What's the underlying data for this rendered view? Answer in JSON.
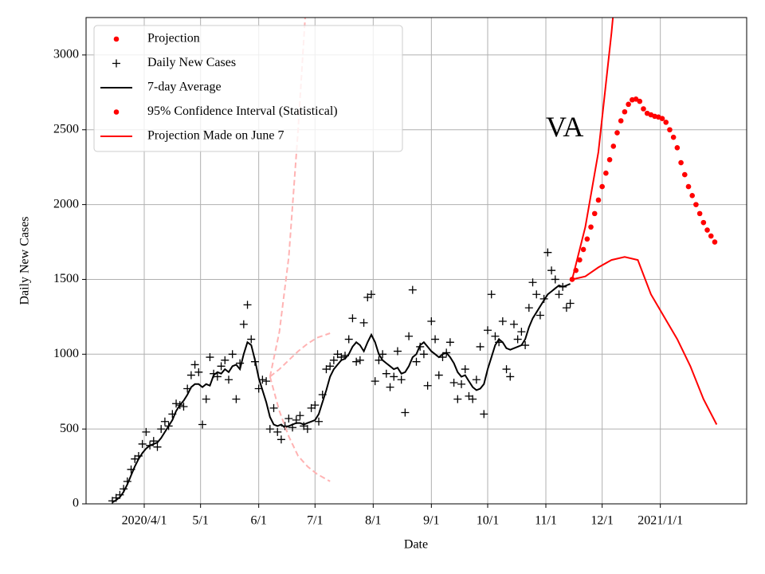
{
  "chart_data": {
    "type": "line",
    "annotation": {
      "text": "VA",
      "x": "2020-11-01",
      "y": 2500
    },
    "x_label": "Date",
    "y_label": "Daily New Cases",
    "xlim": [
      "2020-03-01",
      "2021-02-16"
    ],
    "ylim": [
      0,
      3250
    ],
    "yticks": [
      0,
      500,
      1000,
      1500,
      2000,
      2500,
      3000
    ],
    "xticks": [
      {
        "value": "2020-04-01",
        "label": "2020/4/1"
      },
      {
        "value": "2020-05-01",
        "label": "5/1"
      },
      {
        "value": "2020-06-01",
        "label": "6/1"
      },
      {
        "value": "2020-07-01",
        "label": "7/1"
      },
      {
        "value": "2020-08-01",
        "label": "8/1"
      },
      {
        "value": "2020-09-01",
        "label": "9/1"
      },
      {
        "value": "2020-10-01",
        "label": "10/1"
      },
      {
        "value": "2020-11-01",
        "label": "11/1"
      },
      {
        "value": "2020-12-01",
        "label": "12/1"
      },
      {
        "value": "2021-01-01",
        "label": "2021/1/1"
      }
    ],
    "grid": true,
    "legend": "upper left",
    "x": [
      "2020-03-15",
      "2020-03-17",
      "2020-03-19",
      "2020-03-21",
      "2020-03-23",
      "2020-03-25",
      "2020-03-27",
      "2020-03-29",
      "2020-03-31",
      "2020-04-02",
      "2020-04-04",
      "2020-04-06",
      "2020-04-08",
      "2020-04-10",
      "2020-04-12",
      "2020-04-14",
      "2020-04-16",
      "2020-04-18",
      "2020-04-20",
      "2020-04-22",
      "2020-04-24",
      "2020-04-26",
      "2020-04-28",
      "2020-04-30",
      "2020-05-02",
      "2020-05-04",
      "2020-05-06",
      "2020-05-08",
      "2020-05-10",
      "2020-05-12",
      "2020-05-14",
      "2020-05-16",
      "2020-05-18",
      "2020-05-20",
      "2020-05-22",
      "2020-05-24",
      "2020-05-26",
      "2020-05-28",
      "2020-05-30",
      "2020-06-01",
      "2020-06-03",
      "2020-06-05",
      "2020-06-07",
      "2020-06-09",
      "2020-06-11",
      "2020-06-13",
      "2020-06-15",
      "2020-06-17",
      "2020-06-19",
      "2020-06-21",
      "2020-06-23",
      "2020-06-25",
      "2020-06-27",
      "2020-06-29",
      "2020-07-01",
      "2020-07-03",
      "2020-07-05",
      "2020-07-07",
      "2020-07-09",
      "2020-07-11",
      "2020-07-13",
      "2020-07-15",
      "2020-07-17",
      "2020-07-19",
      "2020-07-21",
      "2020-07-23",
      "2020-07-25",
      "2020-07-27",
      "2020-07-29",
      "2020-07-31",
      "2020-08-02",
      "2020-08-04",
      "2020-08-06",
      "2020-08-08",
      "2020-08-10",
      "2020-08-12",
      "2020-08-14",
      "2020-08-16",
      "2020-08-18",
      "2020-08-20",
      "2020-08-22",
      "2020-08-24",
      "2020-08-26",
      "2020-08-28",
      "2020-08-30",
      "2020-09-01",
      "2020-09-03",
      "2020-09-05",
      "2020-09-07",
      "2020-09-09",
      "2020-09-11",
      "2020-09-13",
      "2020-09-15",
      "2020-09-17",
      "2020-09-19",
      "2020-09-21",
      "2020-09-23",
      "2020-09-25",
      "2020-09-27",
      "2020-09-29",
      "2020-10-01",
      "2020-10-03",
      "2020-10-05",
      "2020-10-07",
      "2020-10-09",
      "2020-10-11",
      "2020-10-13",
      "2020-10-15",
      "2020-10-17",
      "2020-10-19",
      "2020-10-21",
      "2020-10-23",
      "2020-10-25",
      "2020-10-27",
      "2020-10-29",
      "2020-10-31",
      "2020-11-02",
      "2020-11-04",
      "2020-11-06",
      "2020-11-08",
      "2020-11-10",
      "2020-11-12",
      "2020-11-14"
    ],
    "series": [
      {
        "name": "Projection",
        "color": "#ff0000",
        "marker": "dot",
        "x": [
          "2020-11-15",
          "2020-11-17",
          "2020-11-19",
          "2020-11-21",
          "2020-11-23",
          "2020-11-25",
          "2020-11-27",
          "2020-11-29",
          "2020-12-01",
          "2020-12-03",
          "2020-12-05",
          "2020-12-07",
          "2020-12-09",
          "2020-12-11",
          "2020-12-13",
          "2020-12-15",
          "2020-12-17",
          "2020-12-19",
          "2020-12-21",
          "2020-12-23",
          "2020-12-25",
          "2020-12-27",
          "2020-12-29",
          "2020-12-31",
          "2021-01-02",
          "2021-01-04",
          "2021-01-06",
          "2021-01-08",
          "2021-01-10",
          "2021-01-12",
          "2021-01-14",
          "2021-01-16",
          "2021-01-18",
          "2021-01-20",
          "2021-01-22",
          "2021-01-24",
          "2021-01-26",
          "2021-01-28",
          "2021-01-30"
        ],
        "values": [
          1500,
          1560,
          1630,
          1700,
          1770,
          1850,
          1940,
          2030,
          2120,
          2210,
          2300,
          2390,
          2480,
          2560,
          2620,
          2670,
          2700,
          2705,
          2690,
          2640,
          2610,
          2600,
          2590,
          2585,
          2575,
          2550,
          2500,
          2450,
          2380,
          2280,
          2200,
          2120,
          2060,
          2000,
          1940,
          1880,
          1830,
          1790,
          1750
        ]
      },
      {
        "name": "Daily New Cases",
        "color": "#000000",
        "marker": "plus",
        "values": [
          20,
          40,
          60,
          100,
          150,
          230,
          300,
          320,
          400,
          480,
          390,
          420,
          380,
          500,
          550,
          520,
          600,
          670,
          660,
          650,
          770,
          860,
          930,
          880,
          530,
          700,
          980,
          870,
          850,
          920,
          960,
          830,
          1000,
          700,
          940,
          1200,
          1330,
          1100,
          950,
          770,
          830,
          820,
          500,
          640,
          480,
          430,
          520,
          570,
          510,
          560,
          590,
          520,
          500,
          640,
          660,
          550,
          730,
          900,
          920,
          960,
          1000,
          980,
          990,
          1100,
          1240,
          950,
          960,
          1210,
          1380,
          1400,
          820,
          960,
          1000,
          870,
          780,
          850,
          1020,
          830,
          610,
          1120,
          1430,
          950,
          1050,
          1000,
          790,
          1220,
          1100,
          860,
          980,
          1010,
          1080,
          810,
          700,
          800,
          900,
          720,
          700,
          830,
          1050,
          600,
          1160,
          1400,
          1120,
          1080,
          1220,
          900,
          850,
          1200,
          1100,
          1150,
          1060,
          1310,
          1480,
          1400,
          1260,
          1370,
          1680,
          1560,
          1500,
          1400,
          1450,
          1310,
          1340
        ]
      },
      {
        "name": "7-day Average",
        "color": "#000000",
        "marker": "line",
        "values": [
          10,
          25,
          45,
          80,
          130,
          190,
          250,
          300,
          340,
          370,
          390,
          400,
          410,
          440,
          480,
          520,
          560,
          620,
          660,
          690,
          730,
          780,
          800,
          800,
          780,
          800,
          790,
          860,
          880,
          870,
          900,
          880,
          920,
          930,
          900,
          1000,
          1080,
          1060,
          960,
          840,
          760,
          680,
          580,
          530,
          520,
          530,
          510,
          520,
          530,
          540,
          540,
          530,
          540,
          550,
          560,
          600,
          680,
          760,
          850,
          900,
          930,
          960,
          970,
          1000,
          1050,
          1080,
          1060,
          1020,
          1080,
          1130,
          1080,
          1000,
          960,
          940,
          920,
          900,
          910,
          870,
          880,
          920,
          980,
          1000,
          1060,
          1080,
          1050,
          1020,
          1000,
          980,
          1000,
          1010,
          980,
          940,
          880,
          850,
          860,
          820,
          780,
          760,
          770,
          800,
          900,
          980,
          1060,
          1100,
          1080,
          1040,
          1030,
          1040,
          1050,
          1060,
          1100,
          1180,
          1240,
          1280,
          1320,
          1360,
          1400,
          1420,
          1440,
          1460,
          1450,
          1460,
          1470
        ]
      },
      {
        "name": "95% Confidence Interval (Statistical)",
        "color": "#ff0000",
        "marker": "band",
        "legend_marker": "dot",
        "x": [
          "2020-11-15",
          "2020-11-22",
          "2020-11-29",
          "2020-12-06",
          "2020-12-13",
          "2020-12-20",
          "2020-12-27",
          "2021-01-03",
          "2021-01-10",
          "2021-01-17",
          "2021-01-24",
          "2021-01-31"
        ],
        "lower": [
          1500,
          1520,
          1580,
          1630,
          1650,
          1630,
          1400,
          1250,
          1100,
          920,
          700,
          530
        ],
        "upper": [
          1500,
          1850,
          2350,
          3150,
          4100,
          null,
          null,
          null,
          null,
          null,
          null,
          null
        ]
      },
      {
        "name": "Projection Made on June 7",
        "color": "#ffb3b3",
        "marker": "dashed",
        "legend_color": "#ff0000",
        "x": [
          "2020-06-07",
          "2020-06-12",
          "2020-06-17",
          "2020-06-22",
          "2020-06-27",
          "2020-07-02",
          "2020-07-09"
        ],
        "values": [
          850,
          900,
          960,
          1020,
          1070,
          1110,
          1140
        ],
        "lower": [
          850,
          620,
          450,
          320,
          250,
          200,
          150
        ],
        "upper": [
          850,
          1150,
          1650,
          2500,
          3500,
          null,
          null
        ]
      }
    ]
  }
}
